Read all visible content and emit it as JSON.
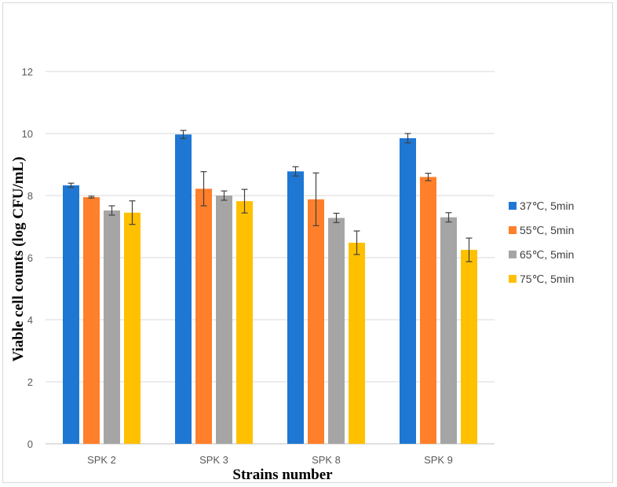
{
  "chart_data": {
    "type": "bar",
    "title": "",
    "xlabel": "Strains number",
    "ylabel": "Viable cell counts (log CFU/mL)",
    "ylim": [
      0,
      12
    ],
    "yticks": [
      0,
      2,
      4,
      6,
      8,
      10,
      12
    ],
    "grid": true,
    "legend_position": "right",
    "categories": [
      "SPK 2",
      "SPK 3",
      "SPK 8",
      "SPK 9"
    ],
    "series": [
      {
        "name": "37℃, 5min",
        "color": "#1f77d4",
        "values": [
          8.33,
          9.97,
          8.78,
          9.85
        ],
        "errors": [
          0.07,
          0.13,
          0.15,
          0.15
        ]
      },
      {
        "name": "55℃, 5min",
        "color": "#ff7f2a",
        "values": [
          7.95,
          8.22,
          7.88,
          8.6
        ],
        "errors": [
          0.03,
          0.55,
          0.85,
          0.12
        ]
      },
      {
        "name": "65℃, 5min",
        "color": "#a5a5a5",
        "values": [
          7.52,
          8.0,
          7.28,
          7.3
        ],
        "errors": [
          0.15,
          0.15,
          0.15,
          0.15
        ]
      },
      {
        "name": "75℃, 5min",
        "color": "#ffc000",
        "values": [
          7.45,
          7.82,
          6.48,
          6.25
        ],
        "errors": [
          0.38,
          0.38,
          0.38,
          0.38
        ]
      }
    ]
  }
}
